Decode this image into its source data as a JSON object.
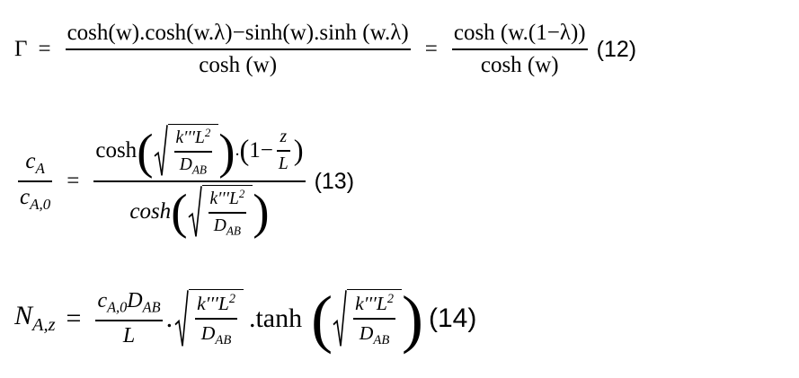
{
  "equations": {
    "eq12": {
      "lhs": "Γ",
      "eq": "=",
      "f1_num": "cosh(w).cosh(w.λ)−sinh(w).sinh (w.λ)",
      "f1_den": "cosh (w)",
      "f2_num": "cosh (w.(1−λ))",
      "f2_den": "cosh (w)",
      "tag": "(12)"
    },
    "eq13": {
      "lhs_num_base": "c",
      "lhs_num_sub": "A",
      "lhs_den_base": "c",
      "lhs_den_sub": "A,0",
      "eq": "=",
      "num_fn": "cosh",
      "num_factor_open": "(1−",
      "num_z": "z",
      "num_L": "L",
      "num_factor_close": ")",
      "den_fn": "cosh",
      "root_num": "k′′′L",
      "root_exp": "2",
      "root_den_base": "D",
      "root_den_sub": "AB",
      "dot": ".",
      "tag": "(13)"
    },
    "eq14": {
      "lhs_base": "N",
      "lhs_sub": "A,z",
      "eq": "=",
      "frac_num_c": "c",
      "frac_num_c_sub": "A,0",
      "frac_num_D": "D",
      "frac_num_D_sub": "AB",
      "frac_den": "L",
      "dot": ".",
      "tanh": ".tanh",
      "root_num": "k′′′L",
      "root_exp": "2",
      "root_den_base": "D",
      "root_den_sub": "AB",
      "tag": "(14)"
    }
  }
}
